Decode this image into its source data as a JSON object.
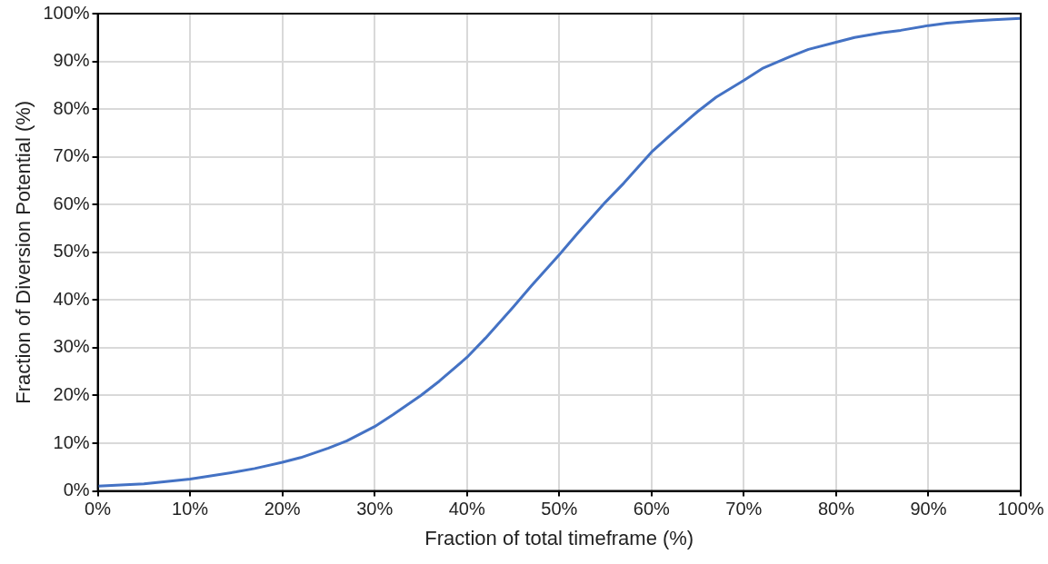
{
  "chart_data": {
    "type": "line",
    "xlabel": "Fraction of total timeframe (%)",
    "ylabel": "Fraction of Diversion Potential (%)",
    "x": [
      0,
      5,
      10,
      15,
      17,
      20,
      22,
      25,
      27,
      30,
      32,
      35,
      37,
      40,
      42,
      45,
      47,
      50,
      52,
      55,
      57,
      60,
      62,
      65,
      67,
      70,
      72,
      75,
      77,
      80,
      82,
      85,
      87,
      90,
      92,
      95,
      97,
      100
    ],
    "series": [
      {
        "color": "#4472c4",
        "values": [
          1,
          1.5,
          2.5,
          4,
          4.7,
          6,
          7,
          9,
          10.5,
          13.5,
          16,
          20,
          23,
          28,
          32,
          38.5,
          43,
          49.5,
          54,
          60.5,
          64.5,
          71,
          74.5,
          79.5,
          82.5,
          86,
          88.5,
          91,
          92.5,
          94,
          95,
          96,
          96.5,
          97.5,
          98,
          98.5,
          98.7,
          99
        ]
      }
    ],
    "xlim": [
      0,
      100
    ],
    "ylim": [
      0,
      100
    ],
    "xticks": [
      {
        "value": 0,
        "label": "0%"
      },
      {
        "value": 10,
        "label": "10%"
      },
      {
        "value": 20,
        "label": "20%"
      },
      {
        "value": 30,
        "label": "30%"
      },
      {
        "value": 40,
        "label": "40%"
      },
      {
        "value": 50,
        "label": "50%"
      },
      {
        "value": 60,
        "label": "60%"
      },
      {
        "value": 70,
        "label": "70%"
      },
      {
        "value": 80,
        "label": "80%"
      },
      {
        "value": 90,
        "label": "90%"
      },
      {
        "value": 100,
        "label": "100%"
      }
    ],
    "yticks": [
      {
        "value": 0,
        "label": "0%"
      },
      {
        "value": 10,
        "label": "10%"
      },
      {
        "value": 20,
        "label": "20%"
      },
      {
        "value": 30,
        "label": "30%"
      },
      {
        "value": 40,
        "label": "40%"
      },
      {
        "value": 50,
        "label": "50%"
      },
      {
        "value": 60,
        "label": "60%"
      },
      {
        "value": 70,
        "label": "70%"
      },
      {
        "value": 80,
        "label": "80%"
      },
      {
        "value": 90,
        "label": "90%"
      },
      {
        "value": 100,
        "label": "100%"
      }
    ],
    "grid": true,
    "legend": false,
    "marker": "none",
    "line_style": "solid"
  }
}
